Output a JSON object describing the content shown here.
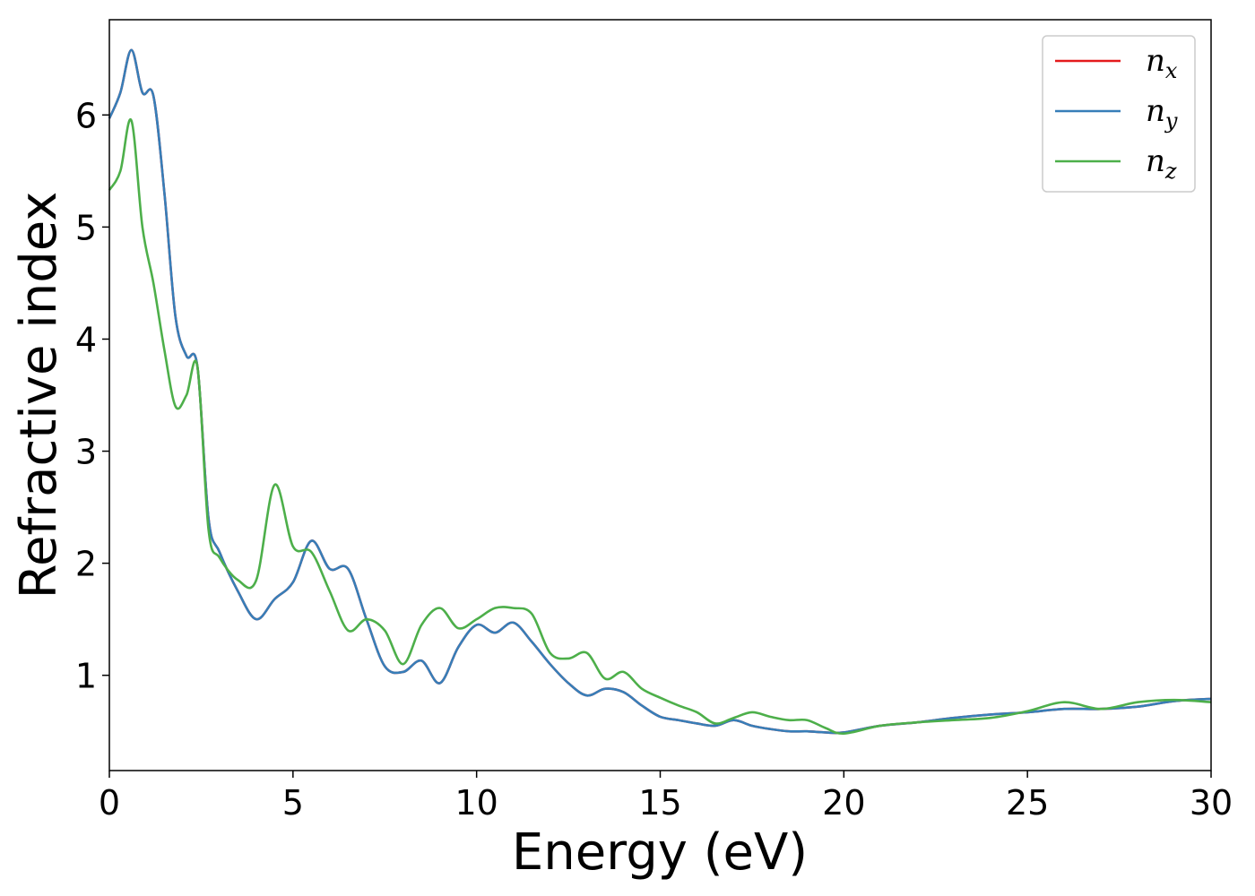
{
  "chart_data": {
    "type": "line",
    "title": "",
    "xlabel": "Energy (eV)",
    "ylabel": "Refractive index",
    "xlim": [
      0,
      30
    ],
    "ylim": [
      0.15,
      6.85
    ],
    "xticks": [
      0,
      5,
      10,
      15,
      20,
      25,
      30
    ],
    "yticks": [
      1,
      2,
      3,
      4,
      5,
      6
    ],
    "grid": false,
    "legend_position": "top-right",
    "series": [
      {
        "name": "n",
        "sub": "x",
        "color": "#e41a1c",
        "x": [
          0,
          0.3,
          0.6,
          0.9,
          1.2,
          1.5,
          1.8,
          2.1,
          2.4,
          2.7,
          3.0,
          3.5,
          4.0,
          4.5,
          5.0,
          5.5,
          6.0,
          6.5,
          7.0,
          7.5,
          8.0,
          8.5,
          9.0,
          9.5,
          10.0,
          10.5,
          11.0,
          11.5,
          12.0,
          12.5,
          13.0,
          13.5,
          14.0,
          14.5,
          15.0,
          15.5,
          16.0,
          16.5,
          17.0,
          17.5,
          18.0,
          18.5,
          19.0,
          19.5,
          20.0,
          21.0,
          22.0,
          23.0,
          24.0,
          25.0,
          26.0,
          27.0,
          28.0,
          29.0,
          30.0
        ],
        "y": [
          5.97,
          6.2,
          6.58,
          6.2,
          6.17,
          5.3,
          4.2,
          3.85,
          3.75,
          2.4,
          2.1,
          1.75,
          1.5,
          1.68,
          1.83,
          2.2,
          1.95,
          1.95,
          1.5,
          1.08,
          1.03,
          1.13,
          0.93,
          1.25,
          1.45,
          1.38,
          1.47,
          1.3,
          1.1,
          0.93,
          0.82,
          0.88,
          0.85,
          0.73,
          0.63,
          0.6,
          0.57,
          0.55,
          0.6,
          0.55,
          0.52,
          0.5,
          0.5,
          0.49,
          0.49,
          0.55,
          0.58,
          0.62,
          0.65,
          0.67,
          0.7,
          0.7,
          0.72,
          0.77,
          0.79
        ]
      },
      {
        "name": "n",
        "sub": "y",
        "color": "#377eb8",
        "x": [
          0,
          0.3,
          0.6,
          0.9,
          1.2,
          1.5,
          1.8,
          2.1,
          2.4,
          2.7,
          3.0,
          3.5,
          4.0,
          4.5,
          5.0,
          5.5,
          6.0,
          6.5,
          7.0,
          7.5,
          8.0,
          8.5,
          9.0,
          9.5,
          10.0,
          10.5,
          11.0,
          11.5,
          12.0,
          12.5,
          13.0,
          13.5,
          14.0,
          14.5,
          15.0,
          15.5,
          16.0,
          16.5,
          17.0,
          17.5,
          18.0,
          18.5,
          19.0,
          19.5,
          20.0,
          21.0,
          22.0,
          23.0,
          24.0,
          25.0,
          26.0,
          27.0,
          28.0,
          29.0,
          30.0
        ],
        "y": [
          5.97,
          6.2,
          6.58,
          6.2,
          6.17,
          5.3,
          4.2,
          3.85,
          3.75,
          2.4,
          2.1,
          1.75,
          1.5,
          1.68,
          1.83,
          2.2,
          1.95,
          1.95,
          1.5,
          1.08,
          1.03,
          1.13,
          0.93,
          1.25,
          1.45,
          1.38,
          1.47,
          1.3,
          1.1,
          0.93,
          0.82,
          0.88,
          0.85,
          0.73,
          0.63,
          0.6,
          0.57,
          0.55,
          0.6,
          0.55,
          0.52,
          0.5,
          0.5,
          0.49,
          0.49,
          0.55,
          0.58,
          0.62,
          0.65,
          0.67,
          0.7,
          0.7,
          0.72,
          0.77,
          0.79
        ]
      },
      {
        "name": "n",
        "sub": "z",
        "color": "#4daf4a",
        "x": [
          0,
          0.3,
          0.6,
          0.9,
          1.2,
          1.5,
          1.8,
          2.1,
          2.4,
          2.7,
          3.0,
          3.5,
          4.0,
          4.5,
          5.0,
          5.5,
          6.0,
          6.5,
          7.0,
          7.5,
          8.0,
          8.5,
          9.0,
          9.5,
          10.0,
          10.5,
          11.0,
          11.5,
          12.0,
          12.5,
          13.0,
          13.5,
          14.0,
          14.5,
          15.0,
          15.5,
          16.0,
          16.5,
          17.0,
          17.5,
          18.0,
          18.5,
          19.0,
          19.5,
          20.0,
          21.0,
          22.0,
          23.0,
          24.0,
          25.0,
          26.0,
          27.0,
          28.0,
          29.0,
          30.0
        ],
        "y": [
          5.33,
          5.5,
          5.95,
          5.0,
          4.5,
          3.9,
          3.4,
          3.5,
          3.75,
          2.3,
          2.05,
          1.85,
          1.85,
          2.7,
          2.15,
          2.1,
          1.75,
          1.4,
          1.5,
          1.4,
          1.1,
          1.45,
          1.6,
          1.42,
          1.5,
          1.6,
          1.6,
          1.55,
          1.2,
          1.15,
          1.2,
          0.97,
          1.03,
          0.88,
          0.8,
          0.73,
          0.67,
          0.57,
          0.62,
          0.67,
          0.63,
          0.6,
          0.6,
          0.53,
          0.48,
          0.55,
          0.58,
          0.6,
          0.62,
          0.68,
          0.76,
          0.7,
          0.76,
          0.78,
          0.76
        ]
      }
    ]
  }
}
